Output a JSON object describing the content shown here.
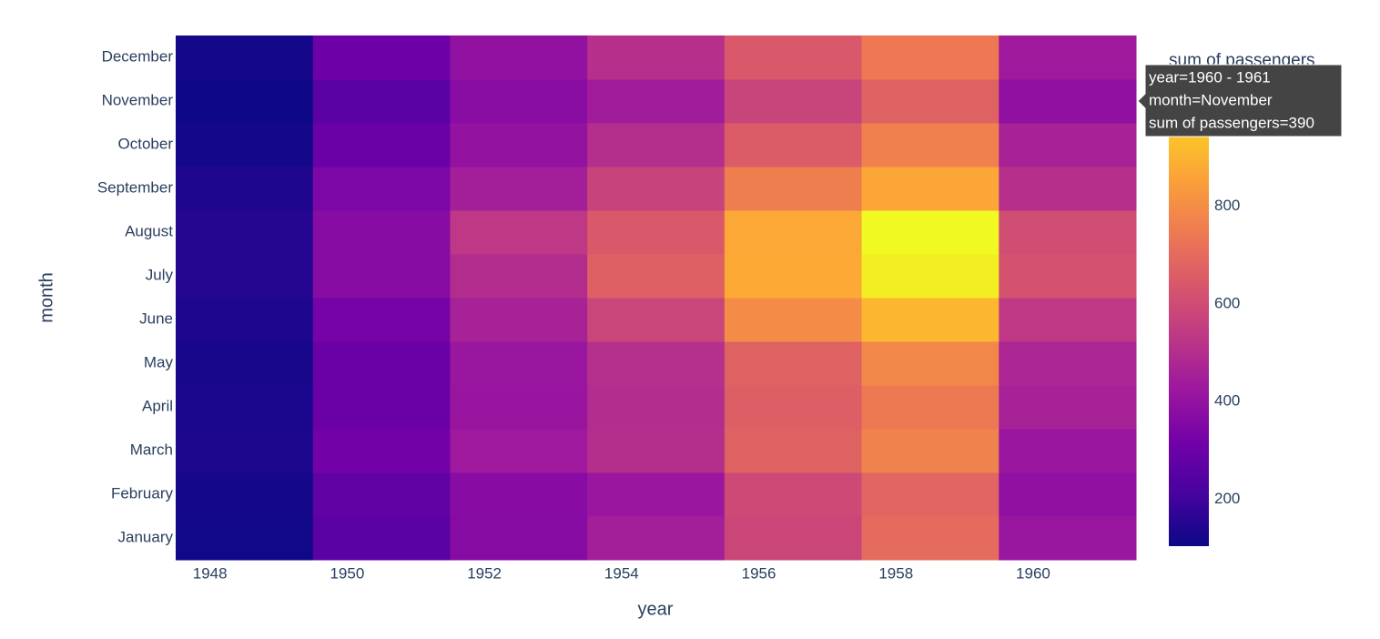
{
  "chart_data": {
    "type": "heatmap",
    "x_label": "year",
    "y_label": "month",
    "xbins": [
      1947.5,
      1949.5,
      1951.5,
      1953.5,
      1955.5,
      1957.5,
      1959.5,
      1961.5
    ],
    "xlim": [
      1947.5,
      1961.5
    ],
    "xticks": [
      1948,
      1950,
      1952,
      1954,
      1956,
      1958,
      1960
    ],
    "categories": [
      "January",
      "February",
      "March",
      "April",
      "May",
      "June",
      "July",
      "August",
      "September",
      "October",
      "November",
      "December"
    ],
    "z": [
      [
        112,
        260,
        367,
        446,
        582,
        700,
        417
      ],
      [
        118,
        276,
        373,
        421,
        595,
        684,
        391
      ],
      [
        132,
        319,
        429,
        502,
        673,
        768,
        419
      ],
      [
        129,
        298,
        416,
        496,
        661,
        744,
        461
      ],
      [
        121,
        297,
        417,
        504,
        673,
        783,
        472
      ],
      [
        135,
        327,
        461,
        579,
        796,
        907,
        535
      ],
      [
        148,
        369,
        494,
        666,
        878,
        1039,
        622
      ],
      [
        148,
        369,
        535,
        640,
        872,
        1064,
        606
      ],
      [
        136,
        342,
        446,
        571,
        759,
        867,
        508
      ],
      [
        119,
        295,
        402,
        503,
        653,
        766,
        461
      ],
      [
        104,
        260,
        375,
        440,
        576,
        672,
        390
      ],
      [
        118,
        306,
        395,
        507,
        642,
        742,
        432
      ]
    ],
    "colorscale": [
      "#0d0887",
      "#46039f",
      "#7201a8",
      "#9c179e",
      "#bd3786",
      "#d8576b",
      "#ed7953",
      "#fb9f3a",
      "#fdca26",
      "#f0f921"
    ],
    "zlim": [
      104,
      1064
    ],
    "colorbar_title": "sum of passengers",
    "colorbar_ticks": [
      200,
      400,
      600,
      800
    ],
    "tooltip": [
      "year=1960 - 1961",
      "month=November",
      "sum of passengers=390"
    ]
  }
}
